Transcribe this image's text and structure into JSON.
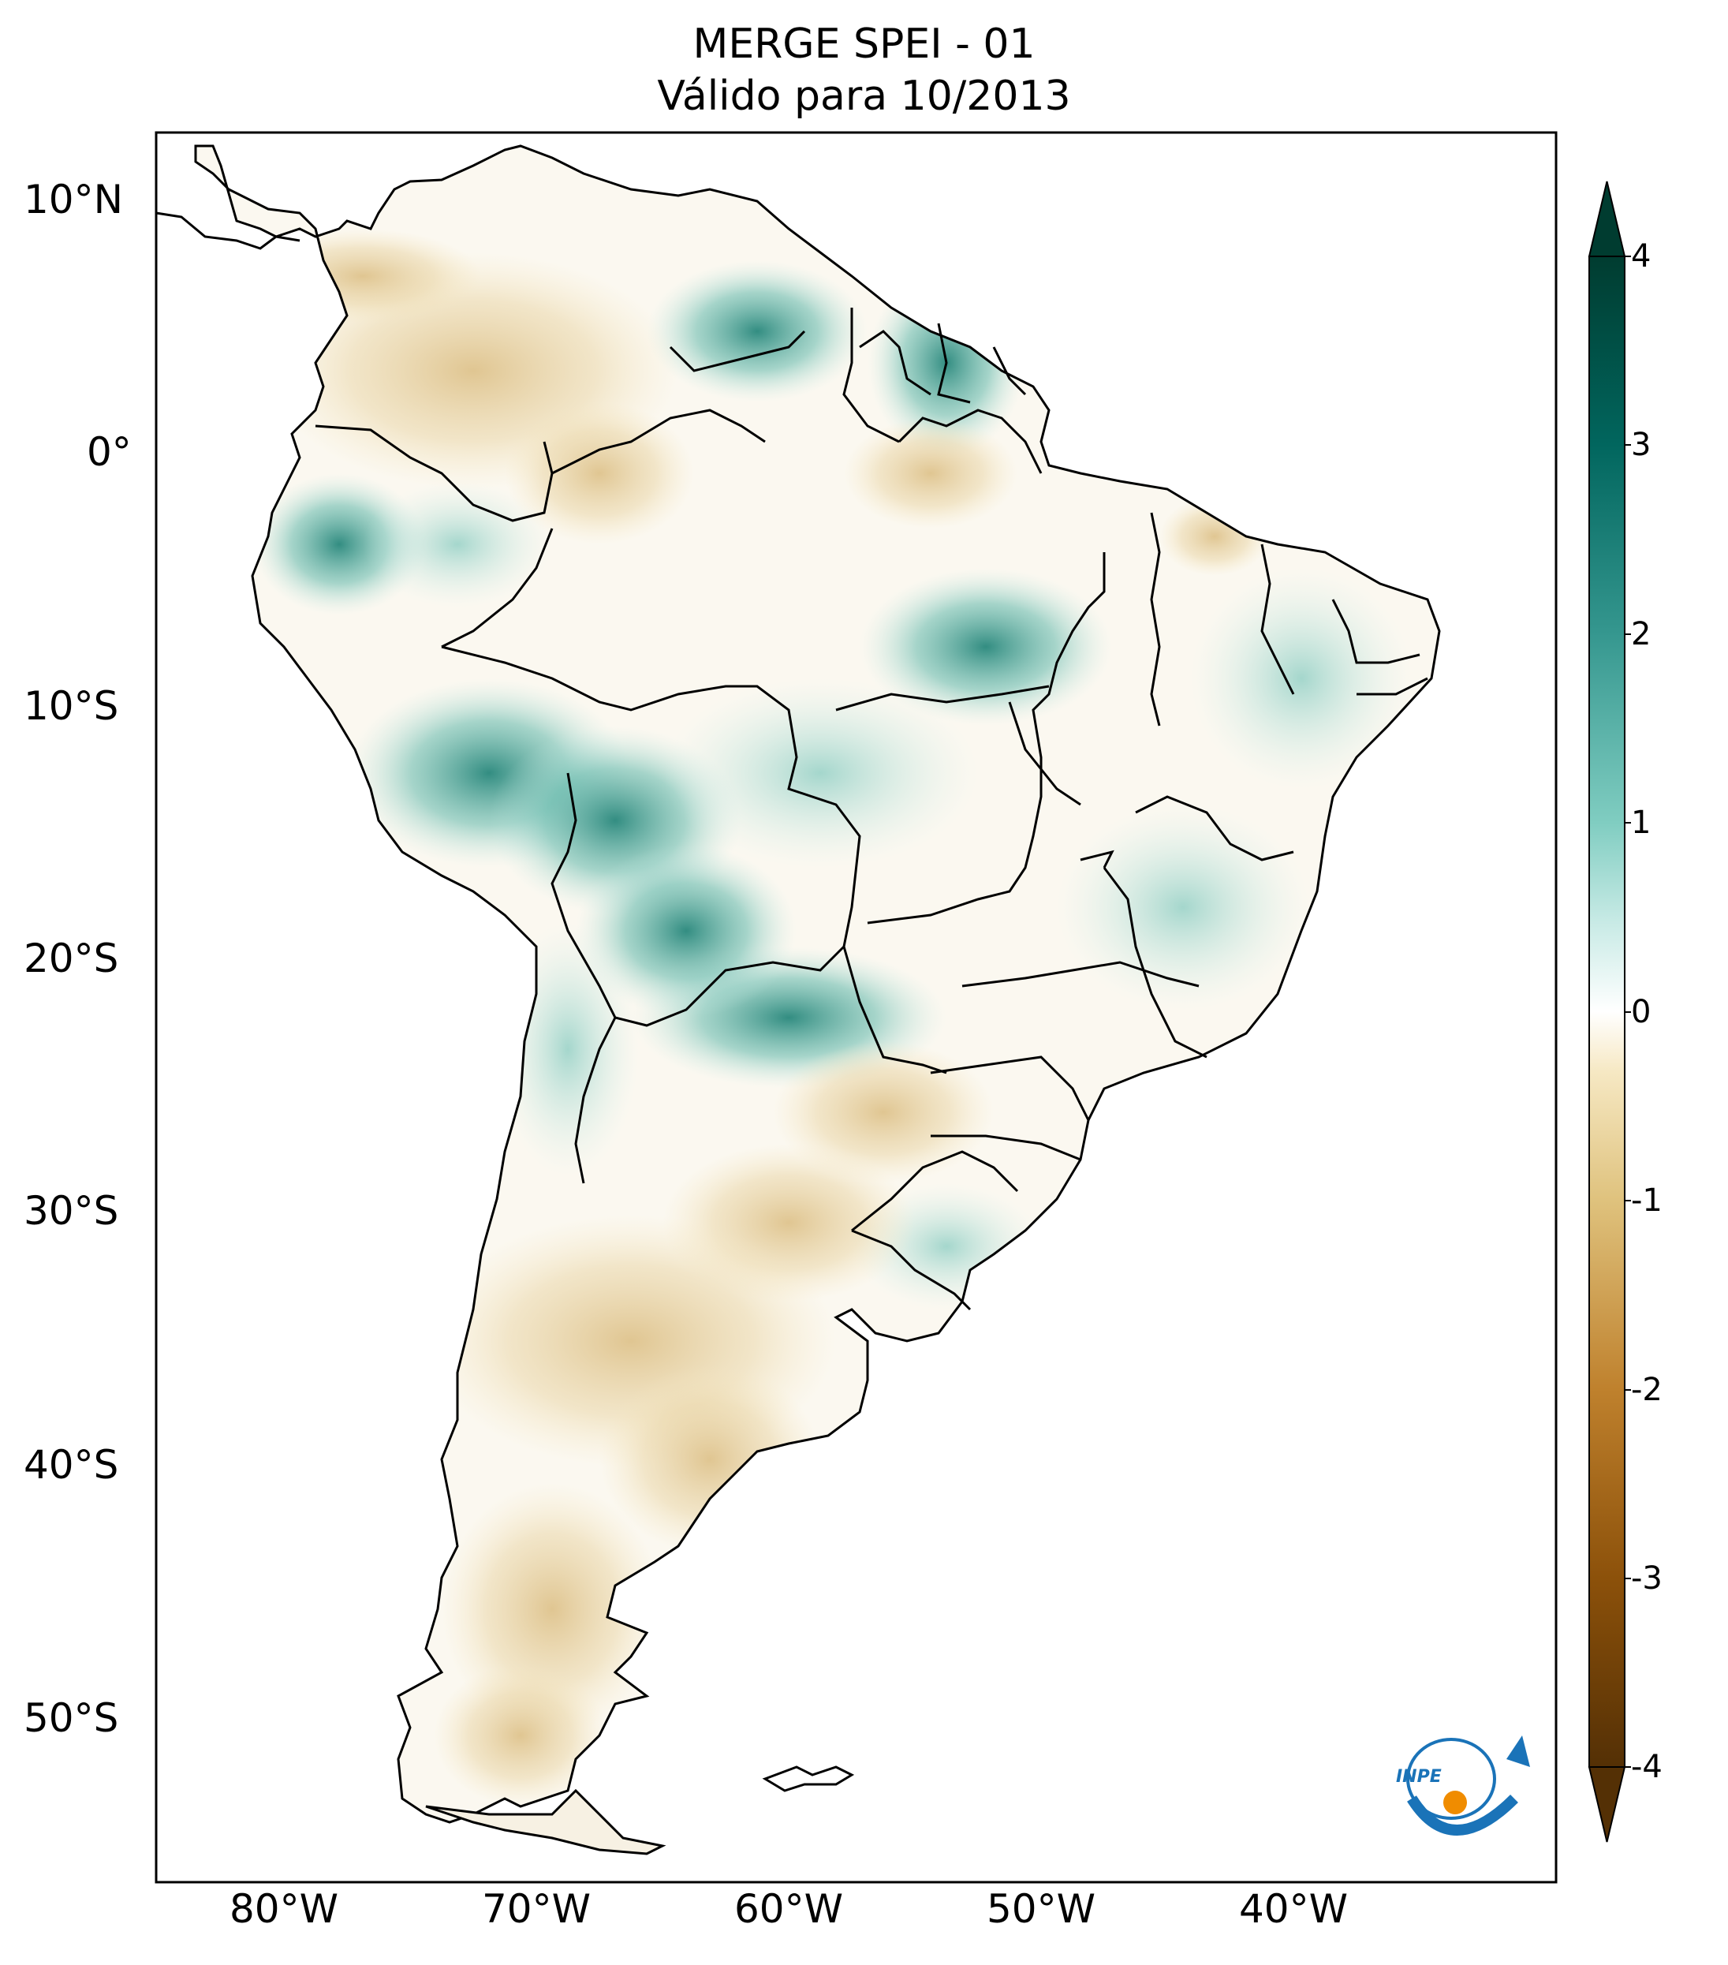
{
  "map": {
    "title_line1": "MERGE   SPEI - 01",
    "title_line2": "Válido para 10/2013",
    "lat_labels": [
      "10°N",
      "0°",
      "10°S",
      "20°S",
      "30°S",
      "40°S",
      "50°S"
    ],
    "lon_labels": [
      "80°W",
      "70°W",
      "60°W",
      "50°W",
      "40°W"
    ],
    "logo_text": "INPE"
  },
  "colorbar": {
    "ticks": [
      "4",
      "3",
      "2",
      "1",
      "0",
      "-1",
      "-2",
      "-3",
      "-4"
    ],
    "min": -4,
    "max": 4,
    "dry_color": "#543005",
    "neutral_color": "#ffffff",
    "wet_color": "#003c30"
  },
  "colors": {
    "logo_blue": "#1a73b8",
    "logo_orange": "#f08c00"
  }
}
